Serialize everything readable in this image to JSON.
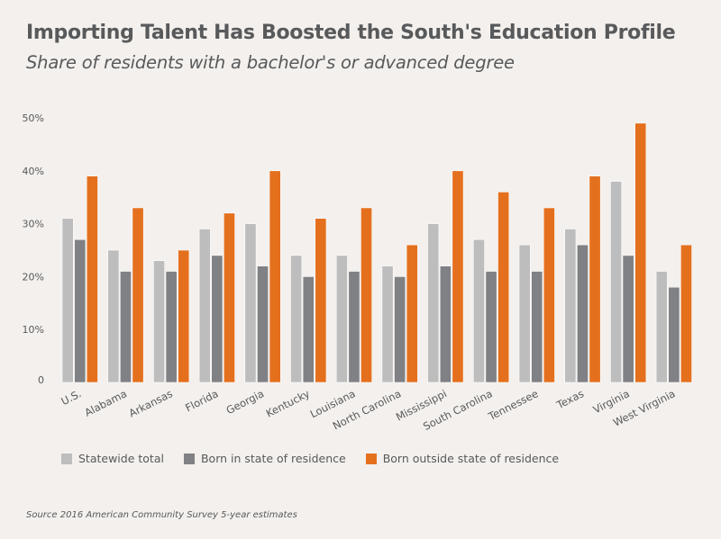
{
  "chart_data": {
    "type": "bar",
    "title": "Importing Talent Has Boosted the South's Education Profile",
    "subtitle": "Share of residents with a bachelor's or advanced degree",
    "xlabel": "",
    "ylabel": "",
    "ylim": [
      0,
      50
    ],
    "yticks": [
      0,
      10,
      20,
      30,
      40,
      50
    ],
    "ytick_labels": [
      "0",
      "10%",
      "20%",
      "30%",
      "40%",
      "50%"
    ],
    "grid": false,
    "legend_position": "bottom",
    "categories": [
      "U.S.",
      "Alabama",
      "Arkansas",
      "Florida",
      "Georgia",
      "Kentucky",
      "Louisiana",
      "North Carolina",
      "Mississippi",
      "South Carolina",
      "Tennessee",
      "Texas",
      "Virginia",
      "West Virginia"
    ],
    "series": [
      {
        "name": "Statewide total",
        "color": "#bdbdbd",
        "values": [
          31,
          25,
          23,
          29,
          30,
          24,
          24,
          22,
          30,
          27,
          26,
          29,
          38,
          21
        ]
      },
      {
        "name": "Born in state of residence",
        "color": "#808184",
        "values": [
          27,
          21,
          21,
          24,
          22,
          20,
          21,
          20,
          22,
          21,
          21,
          26,
          24,
          18
        ]
      },
      {
        "name": "Born outside state of residence",
        "color": "#e4701e",
        "values": [
          39,
          33,
          25,
          32,
          40,
          31,
          33,
          26,
          40,
          36,
          33,
          39,
          49,
          26
        ]
      }
    ],
    "source": "Source 2016 American Community Survey 5-year estimates"
  }
}
